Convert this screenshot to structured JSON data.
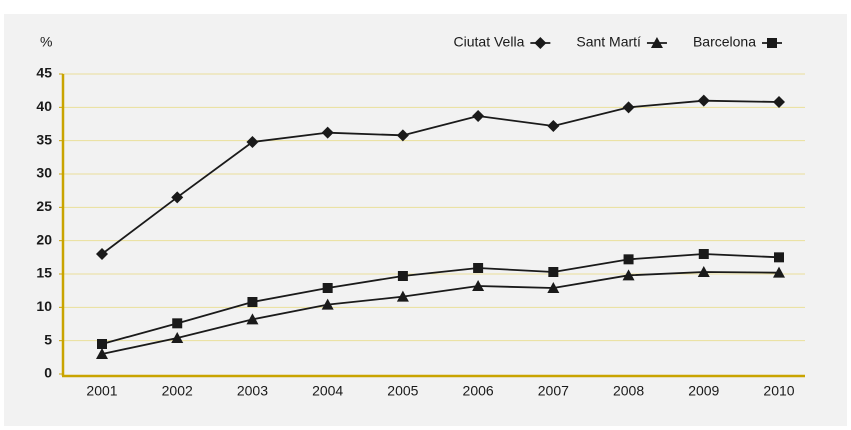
{
  "chart_data": {
    "type": "line",
    "ylabel": "%",
    "categories": [
      "2001",
      "2002",
      "2003",
      "2004",
      "2005",
      "2006",
      "2007",
      "2008",
      "2009",
      "2010"
    ],
    "series": [
      {
        "name": "Ciutat Vella",
        "color": "#1a1a1a",
        "marker": "diamond",
        "values": [
          18,
          26.5,
          34.8,
          36.2,
          35.8,
          38.7,
          37.2,
          40,
          41,
          40.8
        ]
      },
      {
        "name": "Sant Martí",
        "color": "#1a1a1a",
        "marker": "triangle",
        "values": [
          3,
          5.4,
          8.2,
          10.4,
          11.6,
          13.2,
          12.9,
          14.8,
          15.3,
          15.2
        ]
      },
      {
        "name": "Barcelona",
        "color": "#1a1a1a",
        "marker": "square",
        "values": [
          4.5,
          7.6,
          10.8,
          12.9,
          14.7,
          15.9,
          15.3,
          17.2,
          18,
          17.5
        ]
      }
    ],
    "ylim": [
      0,
      45
    ],
    "yticks": [
      0,
      5,
      10,
      15,
      20,
      25,
      30,
      35,
      40,
      45
    ],
    "grid": true,
    "legend": "top-right"
  }
}
